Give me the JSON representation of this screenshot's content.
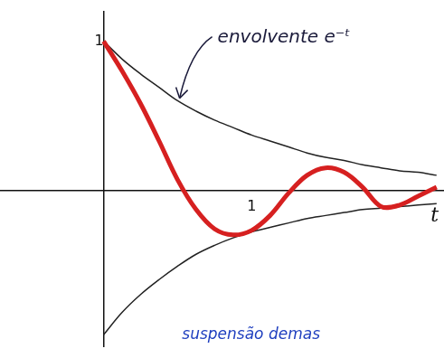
{
  "chart_data": {
    "type": "line",
    "x_label": "t",
    "annotations": [
      "envolvente e⁻ᵗ",
      "suspensão demas"
    ],
    "x": [
      0,
      0.125,
      0.25,
      0.375,
      0.5,
      0.625,
      0.75,
      0.875,
      1,
      1.125,
      1.25,
      1.375,
      1.5,
      1.625,
      1.75,
      1.875,
      2,
      2.125,
      2.25
    ],
    "series": [
      {
        "color": "#222222",
        "values": [
          1,
          0.88,
          0.78,
          0.69,
          0.6,
          0.53,
          0.47,
          0.42,
          0.37,
          0.33,
          0.29,
          0.25,
          0.22,
          0.2,
          0.17,
          0.15,
          0.13,
          0.12,
          0.1
        ]
      },
      {
        "color": "#222222",
        "values": [
          -0.97,
          -0.82,
          -0.7,
          -0.6,
          -0.51,
          -0.43,
          -0.37,
          -0.32,
          -0.28,
          -0.25,
          -0.22,
          -0.19,
          -0.17,
          -0.15,
          -0.13,
          -0.12,
          -0.11,
          -0.1,
          -0.09
        ]
      },
      {
        "color": "#d62020",
        "values": [
          1,
          0.8,
          0.58,
          0.33,
          0.07,
          -0.13,
          -0.26,
          -0.3,
          -0.27,
          -0.17,
          -0.02,
          0.1,
          0.15,
          0.12,
          0.02,
          -0.11,
          -0.1,
          -0.04,
          0.02
        ]
      }
    ],
    "xlim": [
      -0.7,
      2.3
    ],
    "ylim": [
      -1.05,
      1.2
    ],
    "xticks": [
      1
    ],
    "yticks": [
      1
    ],
    "grid": false
  }
}
